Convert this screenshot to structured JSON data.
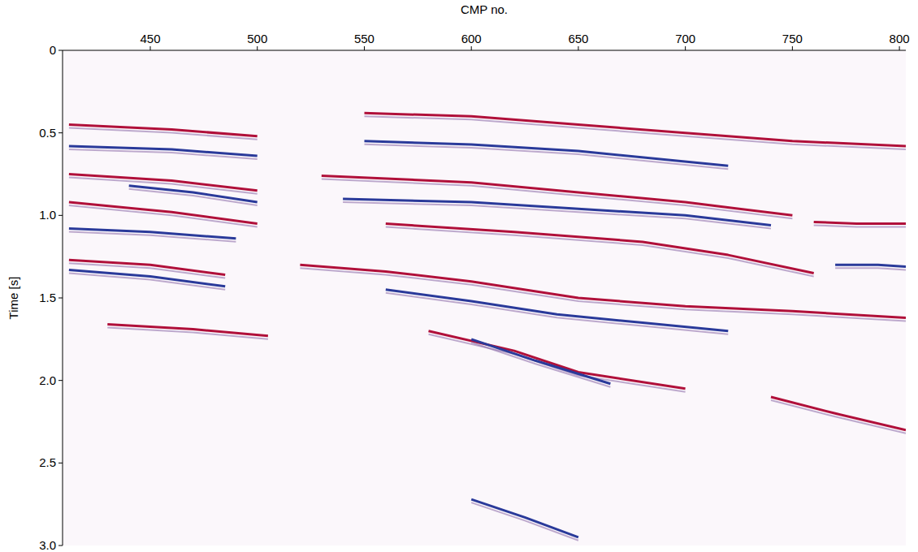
{
  "chart_data": {
    "type": "seismic",
    "xlabel": "CMP no.",
    "ylabel": "Time [s]",
    "xlim": [
      409,
      803
    ],
    "ylim": [
      3.0,
      0
    ],
    "xticks": [
      450,
      500,
      550,
      600,
      650,
      700,
      750,
      800
    ],
    "yticks": [
      0,
      0.5,
      {
        "value": 1,
        "label": "1.0"
      },
      1.5,
      {
        "value": 2,
        "label": "2.0"
      },
      2.5,
      {
        "value": 3,
        "label": "3.0"
      }
    ],
    "grid": false,
    "series": [
      {
        "color": "#b0103a",
        "x": [
          412,
          460,
          500
        ],
        "values": [
          0.45,
          0.48,
          0.52
        ]
      },
      {
        "color": "#2a3a9a",
        "x": [
          412,
          460,
          500
        ],
        "values": [
          0.58,
          0.6,
          0.64
        ]
      },
      {
        "color": "#b0103a",
        "x": [
          412,
          460,
          500
        ],
        "values": [
          0.75,
          0.79,
          0.85
        ]
      },
      {
        "color": "#2a3a9a",
        "x": [
          440,
          470,
          500
        ],
        "values": [
          0.82,
          0.86,
          0.92
        ]
      },
      {
        "color": "#b0103a",
        "x": [
          412,
          460,
          500
        ],
        "values": [
          0.92,
          0.98,
          1.05
        ]
      },
      {
        "color": "#2a3a9a",
        "x": [
          412,
          450,
          490
        ],
        "values": [
          1.08,
          1.1,
          1.14
        ]
      },
      {
        "color": "#b0103a",
        "x": [
          412,
          450,
          485
        ],
        "values": [
          1.27,
          1.3,
          1.36
        ]
      },
      {
        "color": "#2a3a9a",
        "x": [
          412,
          450,
          485
        ],
        "values": [
          1.33,
          1.37,
          1.43
        ]
      },
      {
        "color": "#b0103a",
        "x": [
          430,
          470,
          505
        ],
        "values": [
          1.66,
          1.69,
          1.73
        ]
      },
      {
        "color": "#b0103a",
        "x": [
          550,
          600,
          650,
          700,
          750,
          803
        ],
        "values": [
          0.38,
          0.4,
          0.45,
          0.5,
          0.55,
          0.58
        ]
      },
      {
        "color": "#2a3a9a",
        "x": [
          550,
          600,
          650,
          720
        ],
        "values": [
          0.55,
          0.57,
          0.61,
          0.7
        ]
      },
      {
        "color": "#b0103a",
        "x": [
          530,
          600,
          650,
          700,
          750
        ],
        "values": [
          0.76,
          0.8,
          0.86,
          0.92,
          1.0
        ]
      },
      {
        "color": "#2a3a9a",
        "x": [
          540,
          600,
          650,
          700,
          740
        ],
        "values": [
          0.9,
          0.92,
          0.96,
          1.0,
          1.06
        ]
      },
      {
        "color": "#b0103a",
        "x": [
          560,
          620,
          680,
          720,
          760
        ],
        "values": [
          1.05,
          1.1,
          1.16,
          1.24,
          1.35
        ]
      },
      {
        "color": "#b0103a",
        "x": [
          520,
          560,
          600,
          650,
          700,
          750,
          803
        ],
        "values": [
          1.3,
          1.34,
          1.4,
          1.5,
          1.55,
          1.58,
          1.62
        ]
      },
      {
        "color": "#2a3a9a",
        "x": [
          560,
          600,
          640,
          680,
          720
        ],
        "values": [
          1.45,
          1.52,
          1.6,
          1.65,
          1.7
        ]
      },
      {
        "color": "#b0103a",
        "x": [
          580,
          620,
          650,
          700
        ],
        "values": [
          1.7,
          1.82,
          1.95,
          2.05
        ]
      },
      {
        "color": "#2a3a9a",
        "x": [
          600,
          630,
          665
        ],
        "values": [
          1.75,
          1.88,
          2.02
        ]
      },
      {
        "color": "#b0103a",
        "x": [
          740,
          770,
          803
        ],
        "values": [
          2.1,
          2.2,
          2.3
        ]
      },
      {
        "color": "#b0103a",
        "x": [
          760,
          780,
          803
        ],
        "values": [
          1.04,
          1.05,
          1.05
        ]
      },
      {
        "color": "#2a3a9a",
        "x": [
          770,
          790,
          803
        ],
        "values": [
          1.3,
          1.3,
          1.31
        ]
      },
      {
        "color": "#2a3a9a",
        "x": [
          600,
          625,
          650
        ],
        "values": [
          2.72,
          2.83,
          2.95
        ]
      }
    ]
  }
}
